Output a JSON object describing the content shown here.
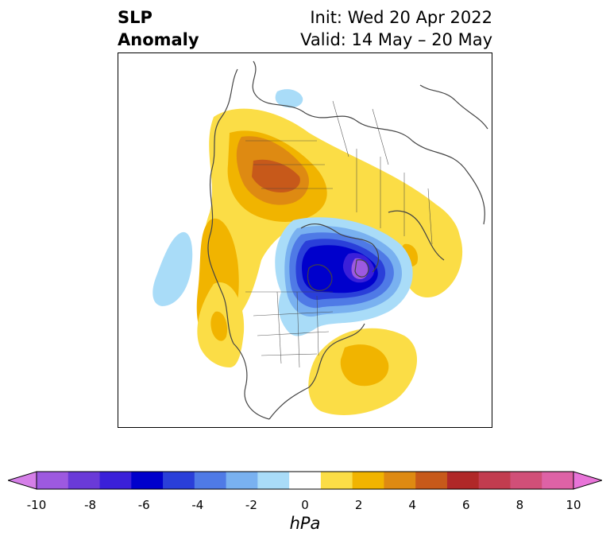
{
  "title": {
    "line1": "SLP",
    "line2": "Anomaly",
    "init": "Init: Wed 20 Apr 2022",
    "valid": "Valid: 14 May – 20 May"
  },
  "colorbar": {
    "unit": "hPa",
    "ticks": [
      "-10",
      "-8",
      "-6",
      "-4",
      "-2",
      "0",
      "2",
      "4",
      "6",
      "8",
      "10"
    ],
    "colors": [
      "#d57fe8",
      "#9d59e0",
      "#6a3ad8",
      "#3b20d9",
      "#0000cc",
      "#2a3fd9",
      "#4f7ae6",
      "#79b1f0",
      "#a9dcf8",
      "#ffffff",
      "#fbdd46",
      "#f1b400",
      "#de8a12",
      "#c7591a",
      "#b02828",
      "#c23c4f",
      "#d14f78",
      "#de62a6",
      "#e874d8"
    ]
  },
  "map": {
    "description_colors": {
      "neg_weak": "#a9dcf8",
      "neg_mid1": "#79b1f0",
      "neg_mid2": "#4f7ae6",
      "neg_mid3": "#2a3fd9",
      "neg_strong": "#0000cc",
      "neg_very": "#3b20d9",
      "neg_core": "#9d59e0",
      "pos_weak": "#fbdd46",
      "pos_mid": "#f1b400",
      "pos_strong": "#de8a12",
      "pos_core": "#c7591a",
      "coast": "#444444"
    }
  }
}
